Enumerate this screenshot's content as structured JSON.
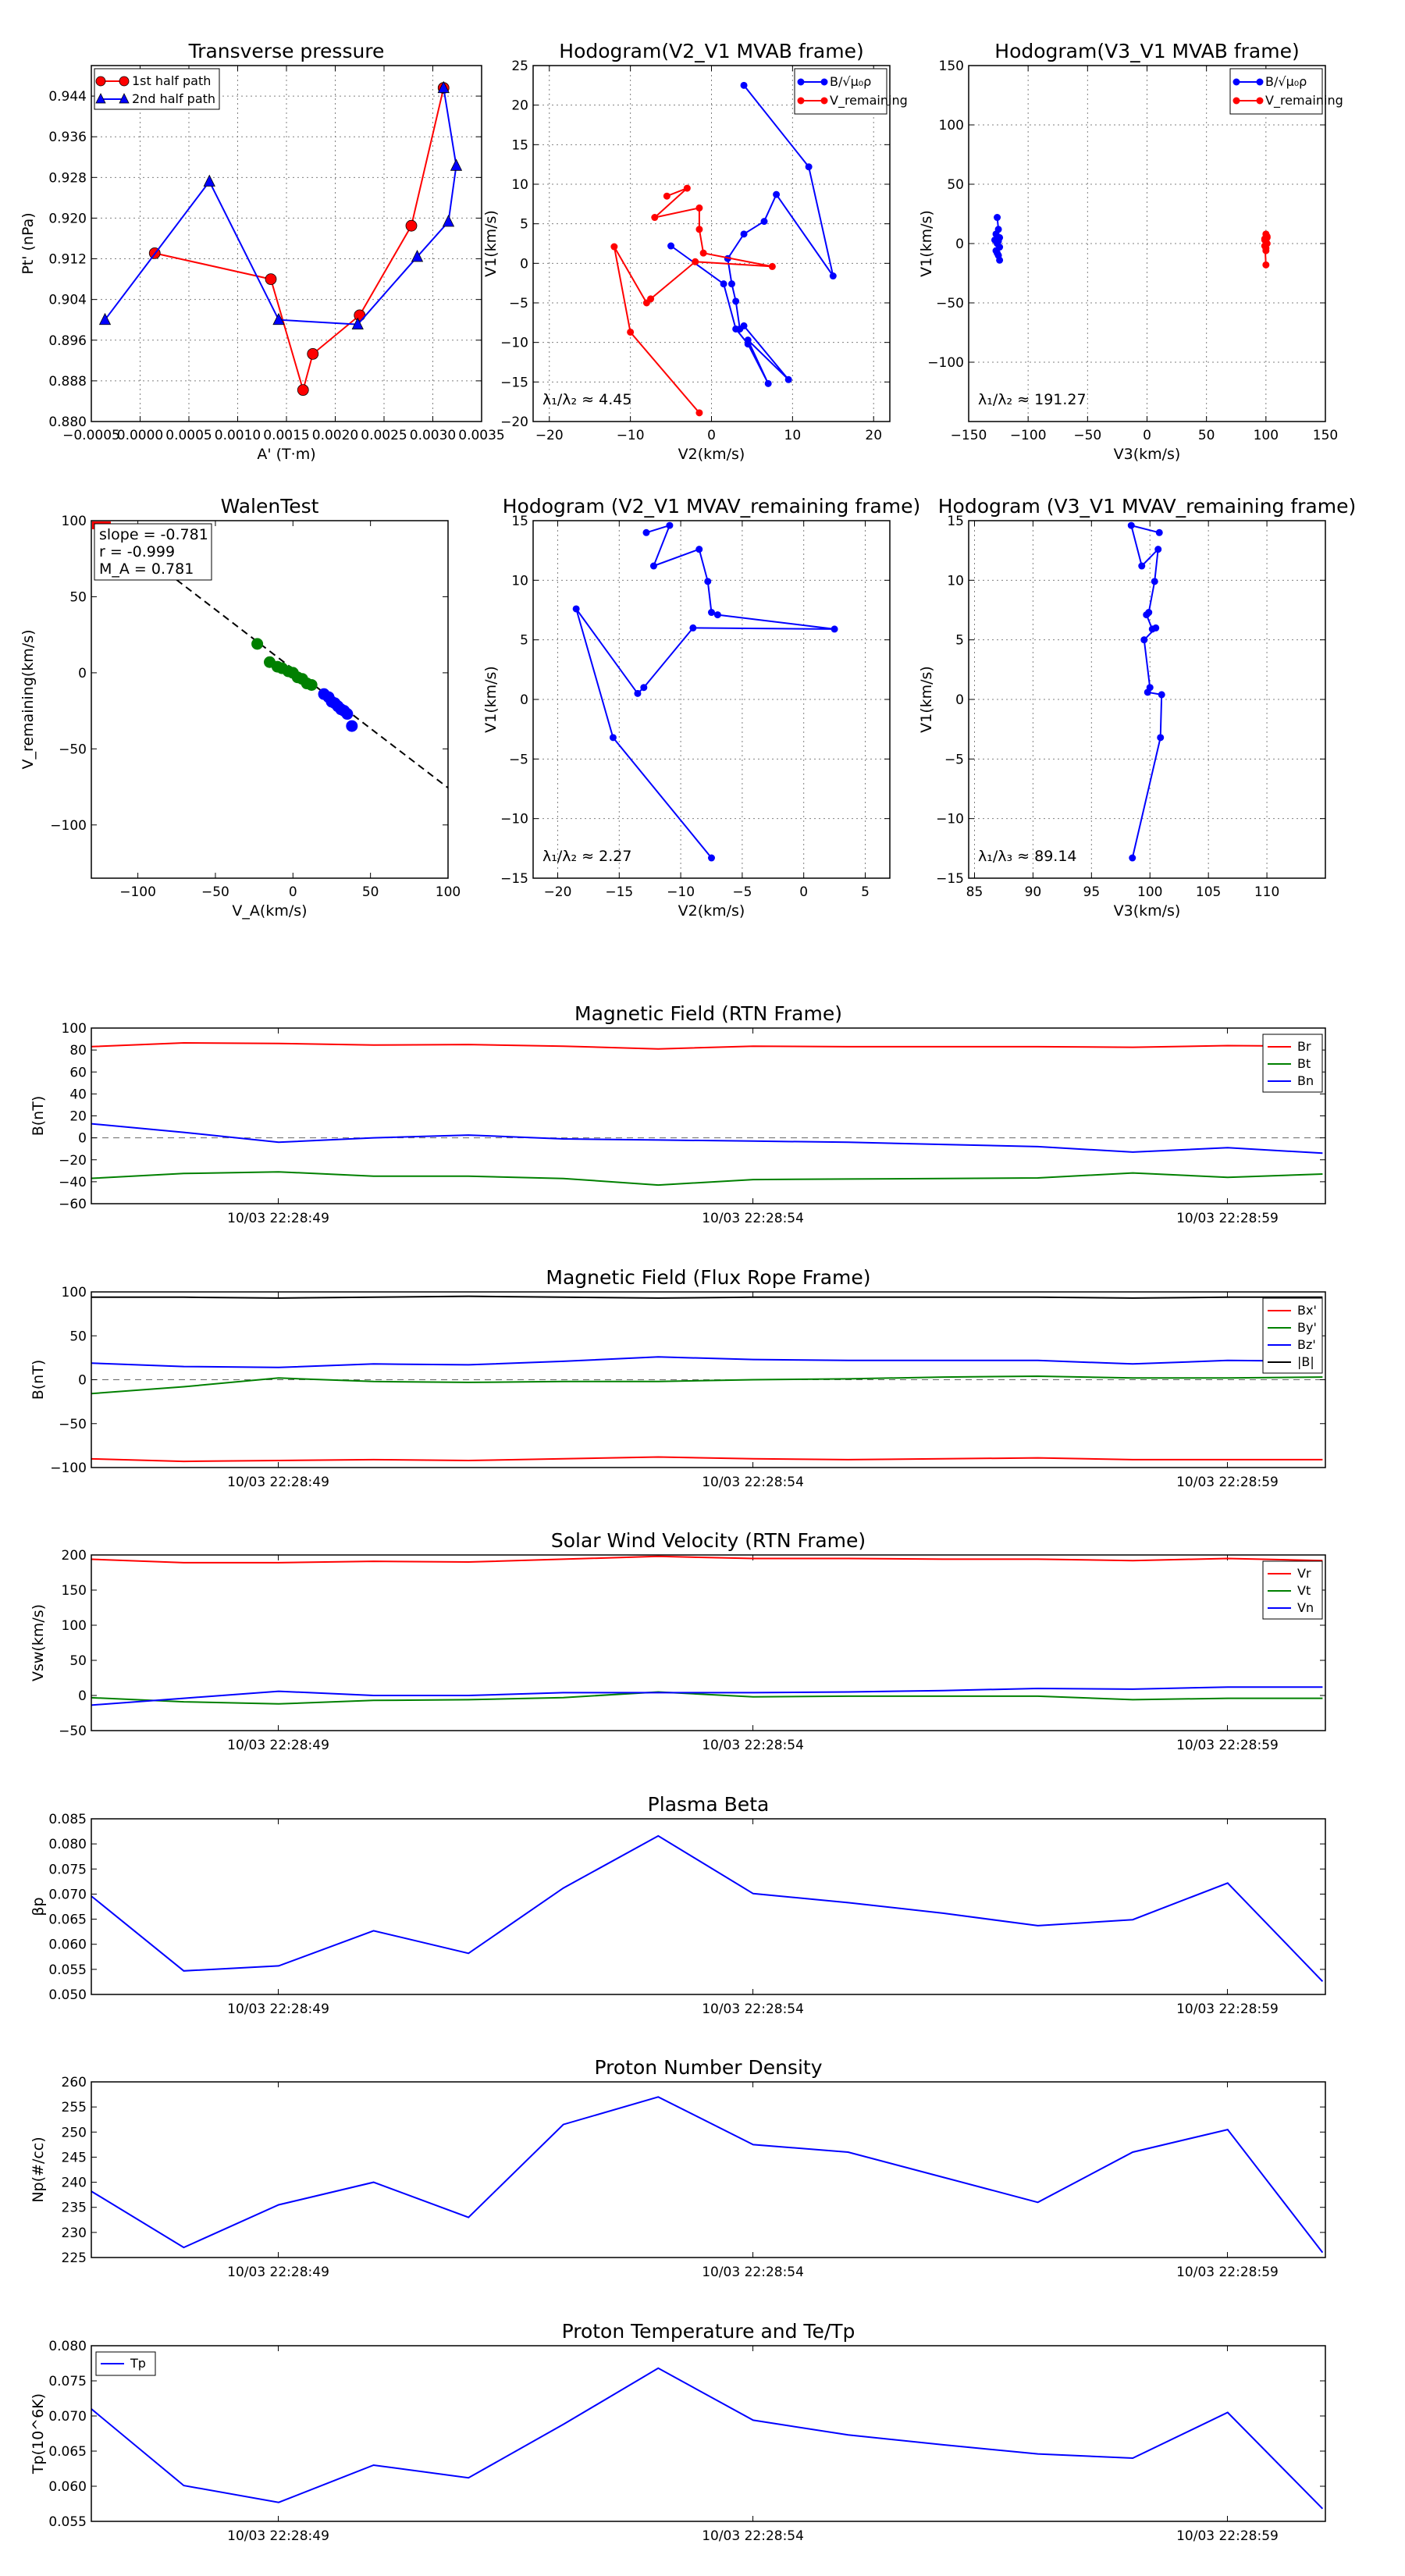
{
  "chart_data": [
    {
      "id": "transverse-pressure",
      "type": "line",
      "title": "Transverse pressure",
      "xlabel": "A' (T·m)",
      "ylabel": "Pt' (nPa)",
      "xlim": [
        -0.0005,
        0.0035
      ],
      "ylim": [
        0.88,
        0.95
      ],
      "xticks": [
        -0.0005,
        0.0,
        0.0005,
        0.001,
        0.0015,
        0.002,
        0.0025,
        0.003,
        0.0035
      ],
      "xtick_labels": [
        "−0.0005",
        "0.0000",
        "0.0005",
        "0.0010",
        "0.0015",
        "0.0020",
        "0.0025",
        "0.0030",
        "0.0035"
      ],
      "yticks": [
        0.88,
        0.888,
        0.896,
        0.904,
        0.912,
        0.92,
        0.928,
        0.936,
        0.944
      ],
      "ytick_labels": [
        "0.880",
        "0.888",
        "0.896",
        "0.904",
        "0.912",
        "0.920",
        "0.928",
        "0.936",
        "0.944"
      ],
      "grid": true,
      "legend": "top-left",
      "series": [
        {
          "name": "1st half path",
          "color": "#ff0000",
          "marker": "circle",
          "x": [
            0.00015,
            0.00134,
            0.00167,
            0.00177,
            0.00225,
            0.00278,
            0.00311
          ],
          "y": [
            0.9131,
            0.908,
            0.8862,
            0.8933,
            0.9009,
            0.9185,
            0.9456
          ]
        },
        {
          "name": "2nd half path",
          "color": "#0000ff",
          "marker": "triangle",
          "x": [
            0.00311,
            0.00324,
            0.00316,
            0.00284,
            0.00223,
            0.00142,
            0.00071,
            -0.00036
          ],
          "y": [
            0.9456,
            0.9303,
            0.9193,
            0.9124,
            0.8991,
            0.9,
            0.9272,
            0.9
          ]
        }
      ]
    },
    {
      "id": "hodogram-v2v1-mvab",
      "type": "line",
      "title": "Hodogram(V2_V1 MVAB frame)",
      "xlabel": "V2(km/s)",
      "ylabel": "V1(km/s)",
      "xlim": [
        -22,
        22
      ],
      "ylim": [
        -20,
        25
      ],
      "xticks": [
        -20,
        -10,
        0,
        10,
        20
      ],
      "xtick_labels": [
        "−20",
        "−10",
        "0",
        "10",
        "20"
      ],
      "yticks": [
        -20,
        -15,
        -10,
        -5,
        0,
        5,
        10,
        15,
        20,
        25
      ],
      "ytick_labels": [
        "−20",
        "−15",
        "−10",
        "−5",
        "0",
        "5",
        "10",
        "15",
        "20",
        "25"
      ],
      "grid": true,
      "legend": "top-right",
      "legend_labels": [
        "B/√μ₀ρ",
        "V_remaining"
      ],
      "annotation": "λ₁/λ₂ ≈ 4.45",
      "series": [
        {
          "name": "B/sqrt(mu0 rho)",
          "color": "#0000ff",
          "x": [
            4,
            12,
            15,
            8,
            6.5,
            4,
            2,
            2.5,
            3,
            3.5,
            4,
            9.5,
            4.5,
            7,
            4.5,
            3,
            1.5,
            -5
          ],
          "y": [
            22.5,
            12.2,
            -1.6,
            8.7,
            5.3,
            3.7,
            0.6,
            -2.6,
            -4.8,
            -8.3,
            -7.9,
            -14.7,
            -9.7,
            -15.2,
            -10.2,
            -8.3,
            -2.6,
            2.2
          ]
        },
        {
          "name": "V_remaining",
          "color": "#ff0000",
          "x": [
            -5.5,
            -3,
            -7,
            -1.5,
            -1.5,
            -1,
            7.5,
            -2,
            -7.5,
            -8,
            -12,
            -10,
            -1.5
          ],
          "y": [
            8.5,
            9.5,
            5.8,
            7.0,
            4.3,
            1.3,
            -0.4,
            0.2,
            -4.5,
            -5.0,
            2.1,
            -8.7,
            -18.9
          ]
        }
      ]
    },
    {
      "id": "hodogram-v3v1-mvab",
      "type": "scatter",
      "title": "Hodogram(V3_V1 MVAB frame)",
      "xlabel": "V3(km/s)",
      "ylabel": "V1(km/s)",
      "xlim": [
        -150,
        150
      ],
      "ylim": [
        -150,
        150
      ],
      "xticks": [
        -150,
        -100,
        -50,
        0,
        50,
        100,
        150
      ],
      "xtick_labels": [
        "−150",
        "−100",
        "−50",
        "0",
        "50",
        "100",
        "150"
      ],
      "yticks": [
        -100,
        -50,
        0,
        50,
        100,
        150
      ],
      "ytick_labels": [
        "−100",
        "−50",
        "0",
        "50",
        "100",
        "150"
      ],
      "grid": true,
      "legend": "top-right",
      "legend_labels": [
        "B/√μ₀ρ",
        "V_remaining"
      ],
      "annotation": "λ₁/λ₂ ≈ 191.27",
      "series": [
        {
          "name": "B/sqrt(mu0 rho)",
          "color": "#0000ff",
          "x": [
            -126,
            -125,
            -127,
            -124,
            -128,
            -126,
            -124,
            -127,
            -125,
            -124,
            -126,
            -125
          ],
          "y": [
            22,
            12,
            8,
            5,
            3,
            0,
            -3,
            -6,
            -10,
            -14,
            -8,
            2
          ]
        },
        {
          "name": "V_remaining",
          "color": "#ff0000",
          "x": [
            100,
            101,
            99,
            100,
            101,
            99,
            100,
            100,
            101,
            99,
            100
          ],
          "y": [
            8,
            6,
            4,
            2,
            0,
            -2,
            -4,
            -6,
            5,
            3,
            -18
          ]
        }
      ]
    },
    {
      "id": "walen-test",
      "type": "scatter",
      "title": "WalenTest",
      "xlabel": "V_A(km/s)",
      "ylabel": "V_remaining(km/s)",
      "xlim": [
        -130,
        100
      ],
      "ylim": [
        -135,
        100
      ],
      "xticks": [
        -100,
        -50,
        0,
        50,
        100
      ],
      "xtick_labels": [
        "−100",
        "−50",
        "0",
        "50",
        "100"
      ],
      "yticks": [
        -100,
        -50,
        0,
        50,
        100
      ],
      "ytick_labels": [
        "−100",
        "−50",
        "0",
        "50",
        "100"
      ],
      "grid": false,
      "fit": {
        "slope": -0.781,
        "intercept": 2.5,
        "x_range": [
          -75,
          100
        ]
      },
      "annotations": [
        "slope = -0.781",
        "r = -0.999",
        "M_A = 0.781"
      ],
      "series": [
        {
          "name": "green",
          "color": "#008000",
          "x": [
            -23,
            -15,
            -10,
            -7,
            -3,
            0,
            3,
            6,
            9,
            12
          ],
          "y": [
            19,
            7,
            4,
            3,
            1,
            0,
            -3,
            -4,
            -7,
            -8
          ]
        },
        {
          "name": "blue",
          "color": "#0000ff",
          "x": [
            20,
            23,
            25,
            27,
            29,
            31,
            33,
            35,
            38
          ],
          "y": [
            -14,
            -16,
            -19,
            -20,
            -22,
            -24,
            -25,
            -27,
            -35
          ]
        }
      ]
    },
    {
      "id": "hodogram-v2v1-mvav",
      "type": "line",
      "title": "Hodogram (V2_V1 MVAV_remaining frame)",
      "xlabel": "V2(km/s)",
      "ylabel": "V1(km/s)",
      "xlim": [
        -22,
        7
      ],
      "ylim": [
        -15,
        15
      ],
      "xticks": [
        -20,
        -15,
        -10,
        -5,
        0,
        5
      ],
      "xtick_labels": [
        "−20",
        "−15",
        "−10",
        "−5",
        "0",
        "5"
      ],
      "yticks": [
        -15,
        -10,
        -5,
        0,
        5,
        10,
        15
      ],
      "ytick_labels": [
        "−15",
        "−10",
        "−5",
        "0",
        "5",
        "10",
        "15"
      ],
      "grid": true,
      "annotation": "λ₁/λ₂ ≈ 2.27",
      "series": [
        {
          "name": "V",
          "color": "#0000ff",
          "x": [
            -12.8,
            -10.9,
            -12.2,
            -8.5,
            -7.8,
            -7.5,
            -7,
            2.5,
            -9,
            -13,
            -13.5,
            -18.5,
            -15.5,
            -7.5
          ],
          "y": [
            14,
            14.6,
            11.2,
            12.6,
            9.9,
            7.3,
            7.1,
            5.9,
            6.0,
            1.0,
            0.5,
            7.6,
            -3.2,
            -13.3
          ]
        }
      ]
    },
    {
      "id": "hodogram-v3v1-mvav",
      "type": "line",
      "title": "Hodogram (V3_V1 MVAV_remaining frame)",
      "xlabel": "V3(km/s)",
      "ylabel": "V1(km/s)",
      "xlim": [
        84.5,
        115
      ],
      "ylim": [
        -15,
        15
      ],
      "xticks": [
        85,
        90,
        95,
        100,
        105,
        110
      ],
      "xtick_labels": [
        "85",
        "90",
        "95",
        "100",
        "105",
        "110"
      ],
      "yticks": [
        -15,
        -10,
        -5,
        0,
        5,
        10,
        15
      ],
      "ytick_labels": [
        "−15",
        "−10",
        "−5",
        "0",
        "5",
        "10",
        "15"
      ],
      "grid": true,
      "annotation": "λ₁/λ₃ ≈ 89.14",
      "series": [
        {
          "name": "V",
          "color": "#0000ff",
          "x": [
            100.8,
            98.4,
            99.3,
            100.7,
            100.4,
            99.9,
            99.7,
            100.2,
            100.5,
            99.5,
            100.0,
            99.8,
            101.0,
            100.9,
            98.5
          ],
          "y": [
            14.0,
            14.6,
            11.2,
            12.6,
            9.9,
            7.3,
            7.1,
            5.9,
            6.0,
            5.0,
            1.0,
            0.6,
            0.4,
            -3.2,
            -13.3
          ]
        }
      ]
    },
    {
      "id": "magnetic-field-rtn",
      "type": "line",
      "title": "Magnetic Field (RTN Frame)",
      "ylabel": "B(nT)",
      "ylim": [
        -60,
        100
      ],
      "yticks": [
        -60,
        -40,
        -20,
        0,
        20,
        40,
        60,
        80,
        100
      ],
      "ytick_labels": [
        "−60",
        "−40",
        "−20",
        "0",
        "20",
        "40",
        "60",
        "80",
        "100"
      ],
      "time_ticks": [
        "10/03 22:28:49",
        "10/03 22:28:54",
        "10/03 22:28:59"
      ],
      "legend": "top-right",
      "series": [
        {
          "name": "Br",
          "color": "#ff0000",
          "values": [
            83,
            86.5,
            86,
            84.5,
            85,
            83.5,
            81,
            83.5,
            83,
            83,
            83,
            82.5,
            84,
            83.5
          ]
        },
        {
          "name": "Bt",
          "color": "#008000",
          "values": [
            -37,
            -32.5,
            -31,
            -35,
            -35,
            -37,
            -43,
            -38,
            -37.5,
            -37,
            -36.5,
            -32,
            -36,
            -33
          ]
        },
        {
          "name": "Bn",
          "color": "#0000ff",
          "values": [
            13,
            5,
            -4,
            0,
            2.5,
            -1,
            -2,
            -3,
            -4,
            -6,
            -8,
            -13,
            -9,
            -14
          ]
        }
      ]
    },
    {
      "id": "magnetic-field-flux-rope",
      "type": "line",
      "title": "Magnetic Field (Flux Rope Frame)",
      "ylabel": "B(nT)",
      "ylim": [
        -100,
        100
      ],
      "yticks": [
        -100,
        -50,
        0,
        50,
        100
      ],
      "ytick_labels": [
        "−100",
        "−50",
        "0",
        "50",
        "100"
      ],
      "time_ticks": [
        "10/03 22:28:49",
        "10/03 22:28:54",
        "10/03 22:28:59"
      ],
      "legend": "top-right",
      "series": [
        {
          "name": "Bx'",
          "color": "#ff0000",
          "values": [
            -90,
            -93,
            -92,
            -91,
            -92,
            -90,
            -88,
            -90,
            -91,
            -90,
            -89,
            -91,
            -91,
            -91
          ]
        },
        {
          "name": "By'",
          "color": "#008000",
          "values": [
            -16,
            -8,
            2,
            -2,
            -3,
            -2,
            -2,
            0,
            1,
            3,
            4,
            2,
            2,
            3
          ]
        },
        {
          "name": "Bz'",
          "color": "#0000ff",
          "values": [
            19,
            15,
            14,
            18,
            17,
            21,
            26,
            23,
            22,
            22,
            22,
            18,
            22,
            21
          ]
        },
        {
          "name": "|B|",
          "color": "#000000",
          "values": [
            94,
            94,
            93,
            94,
            95,
            94,
            93,
            94,
            94,
            94,
            94,
            93,
            94,
            94
          ]
        }
      ]
    },
    {
      "id": "solar-wind-velocity",
      "type": "line",
      "title": "Solar Wind Velocity (RTN Frame)",
      "ylabel": "Vsw(km/s)",
      "ylim": [
        -50,
        200
      ],
      "yticks": [
        -50,
        0,
        50,
        100,
        150,
        200
      ],
      "ytick_labels": [
        "−50",
        "0",
        "50",
        "100",
        "150",
        "200"
      ],
      "time_ticks": [
        "10/03 22:28:49",
        "10/03 22:28:54",
        "10/03 22:28:59"
      ],
      "legend": "top-right",
      "series": [
        {
          "name": "Vr",
          "color": "#ff0000",
          "values": [
            194,
            189,
            189,
            191,
            190,
            194,
            198,
            195,
            195,
            194,
            194,
            192,
            195,
            192
          ]
        },
        {
          "name": "Vt",
          "color": "#008000",
          "values": [
            -3,
            -9,
            -12,
            -7,
            -6,
            -3,
            5,
            -2,
            -1,
            -1,
            -1,
            -6,
            -4,
            -4
          ]
        },
        {
          "name": "Vn",
          "color": "#0000ff",
          "values": [
            -14,
            -4,
            6,
            0,
            0,
            4,
            4,
            4,
            5,
            7,
            10,
            9,
            12,
            12
          ]
        }
      ]
    },
    {
      "id": "plasma-beta",
      "type": "line",
      "title": "Plasma Beta",
      "ylabel": "βp",
      "ylim": [
        0.05,
        0.085
      ],
      "yticks": [
        0.05,
        0.055,
        0.06,
        0.065,
        0.07,
        0.075,
        0.08,
        0.085
      ],
      "ytick_labels": [
        "0.050",
        "0.055",
        "0.060",
        "0.065",
        "0.070",
        "0.075",
        "0.080",
        "0.085"
      ],
      "time_ticks": [
        "10/03 22:28:49",
        "10/03 22:28:54",
        "10/03 22:28:59"
      ],
      "series": [
        {
          "name": "beta",
          "color": "#0000ff",
          "values": [
            0.07,
            0.0547,
            0.0557,
            0.0627,
            0.0582,
            0.0712,
            0.0816,
            0.0701,
            0.0683,
            0.0662,
            0.0637,
            0.0649,
            0.0722,
            0.0526
          ]
        }
      ]
    },
    {
      "id": "proton-number-density",
      "type": "line",
      "title": "Proton Number Density",
      "ylabel": "Np(#/cc)",
      "ylim": [
        225,
        260
      ],
      "yticks": [
        225,
        230,
        235,
        240,
        245,
        250,
        255,
        260
      ],
      "ytick_labels": [
        "225",
        "230",
        "235",
        "240",
        "245",
        "250",
        "255",
        "260"
      ],
      "time_ticks": [
        "10/03 22:28:49",
        "10/03 22:28:54",
        "10/03 22:28:59"
      ],
      "series": [
        {
          "name": "Np",
          "color": "#0000ff",
          "values": [
            238.5,
            227,
            235.5,
            240,
            233,
            251.5,
            257,
            247.5,
            246,
            241,
            236,
            246,
            250.5,
            226
          ]
        }
      ]
    },
    {
      "id": "proton-temperature",
      "type": "line",
      "title": "Proton Temperature and Te/Tp",
      "ylabel": "Tp(10^6K)",
      "ylim": [
        0.055,
        0.08
      ],
      "yticks": [
        0.055,
        0.06,
        0.065,
        0.07,
        0.075,
        0.08
      ],
      "ytick_labels": [
        "0.055",
        "0.060",
        "0.065",
        "0.070",
        "0.075",
        "0.080"
      ],
      "time_ticks": [
        "10/03 22:28:49",
        "10/03 22:28:54",
        "10/03 22:28:59"
      ],
      "legend": "top-left",
      "series": [
        {
          "name": "Tp",
          "color": "#0000ff",
          "values": [
            0.0713,
            0.0601,
            0.0577,
            0.063,
            0.0612,
            0.0688,
            0.0768,
            0.0694,
            0.0673,
            0.0659,
            0.0646,
            0.064,
            0.0705,
            0.0568
          ]
        }
      ]
    }
  ]
}
